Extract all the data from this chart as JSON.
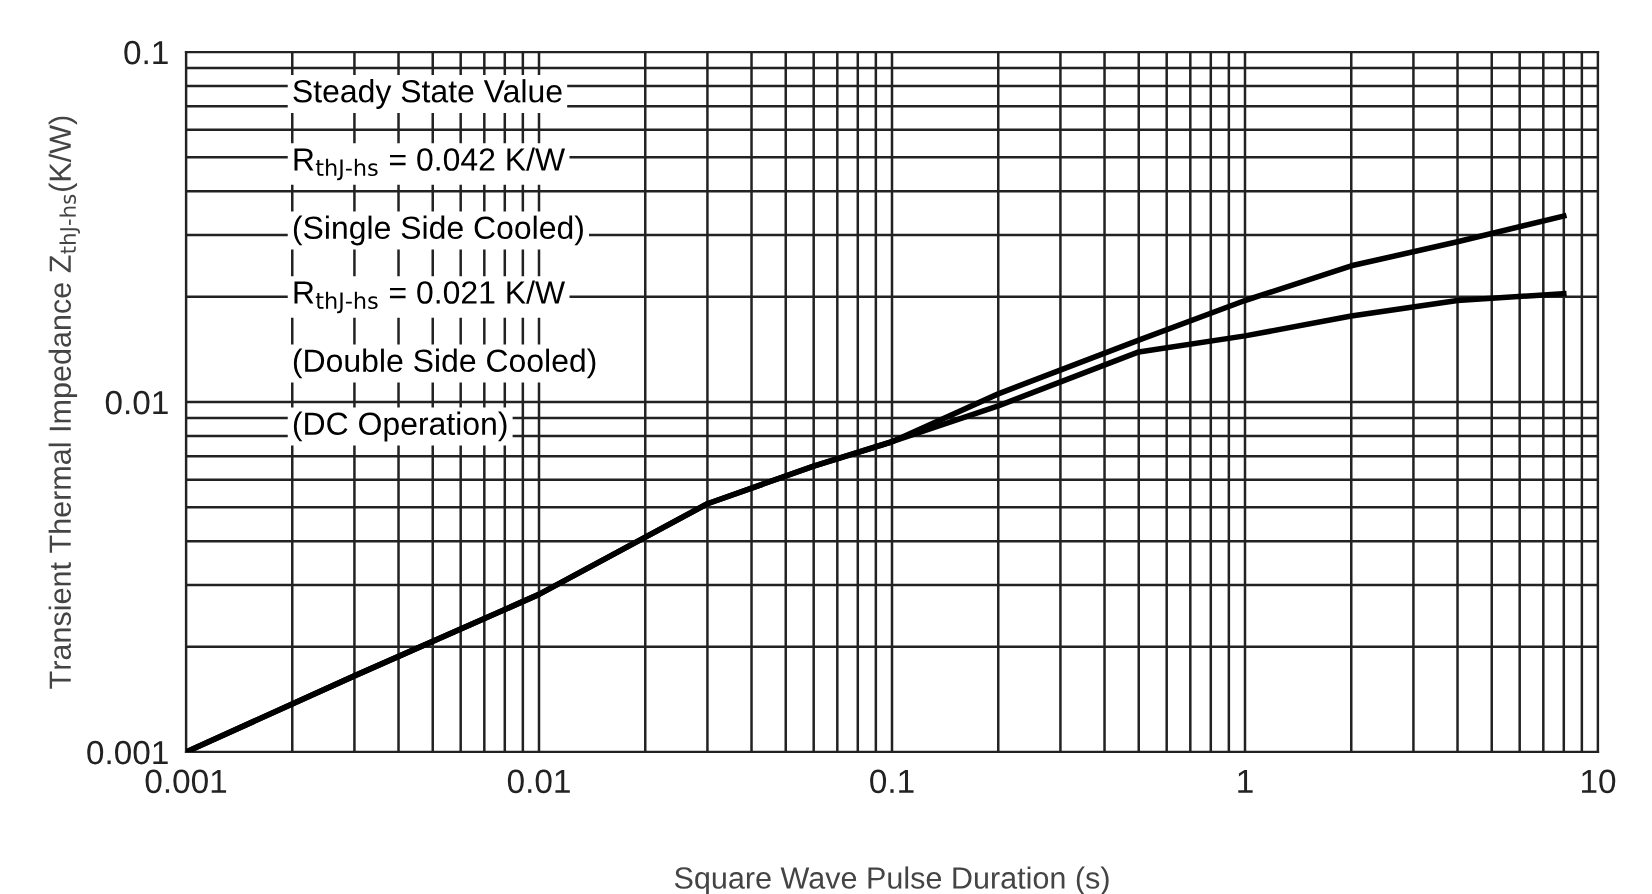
{
  "chart_data": {
    "type": "line",
    "xlabel": "Square Wave Pulse Duration (s)",
    "ylabel": "Transient Thermal Impedance Z$_{thJ-hs}$(K/W)",
    "x": [
      0.001,
      0.003,
      0.01,
      0.03,
      0.06,
      0.1,
      0.2,
      0.5,
      1,
      2,
      4,
      8
    ],
    "series": [
      {
        "color": "#000000",
        "values": [
          0.001,
          0.00165,
          0.00282,
          0.00512,
          0.00656,
          0.0077,
          0.01055,
          0.01503,
          0.0195,
          0.0245,
          0.0287,
          0.034
        ]
      },
      {
        "color": "#000000",
        "values": [
          0.001,
          0.00165,
          0.00282,
          0.00512,
          0.00656,
          0.0077,
          0.00975,
          0.0139,
          0.01545,
          0.0176,
          0.0195,
          0.0204
        ]
      }
    ],
    "log": "xy",
    "xlim": [
      0.001,
      10
    ],
    "ylim": [
      0.001,
      0.1
    ],
    "xticks": [
      0.001,
      0.01,
      0.1,
      1,
      10
    ],
    "yticks": [
      0.001,
      0.01,
      0.1
    ],
    "grid": true,
    "annotations": [
      "Steady State Value",
      "R$_{thJ-hs}$ = 0.042 K/W",
      "(Single Side Cooled)",
      "R$_{thJ-hs}$ = 0.021 K/W",
      "(Double Side Cooled)",
      "(DC Operation)"
    ]
  }
}
